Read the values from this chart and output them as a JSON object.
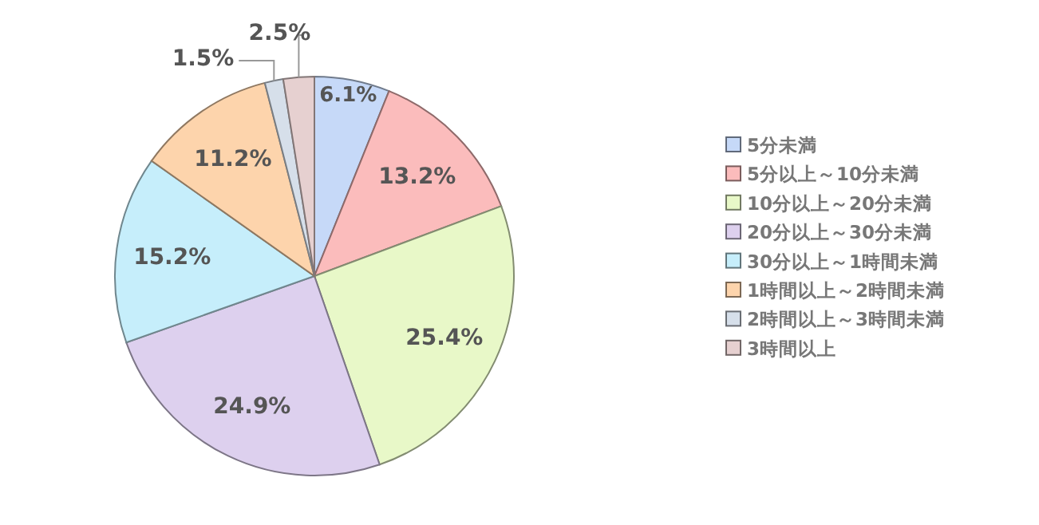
{
  "chart_data": {
    "type": "pie",
    "categories": [
      "5分未満",
      "5分以上～10分未満",
      "10分以上～20分未満",
      "20分以上～30分未満",
      "30分以上～1時間未満",
      "1時間以上～2時間未満",
      "2時間以上～3時間未満",
      "3時間以上"
    ],
    "values": [
      6.1,
      13.2,
      25.4,
      24.9,
      15.2,
      11.2,
      1.5,
      2.5
    ],
    "value_labels": [
      "6.1%",
      "13.2%",
      "25.4%",
      "24.9%",
      "15.2%",
      "11.2%",
      "1.5%",
      "2.5%"
    ],
    "colors": [
      "#c6d9f8",
      "#fbbcbc",
      "#e8f8c8",
      "#ddd0ee",
      "#c6eefb",
      "#fdd4ac",
      "#d6dfea",
      "#e6d0d0"
    ],
    "legend": "right"
  }
}
